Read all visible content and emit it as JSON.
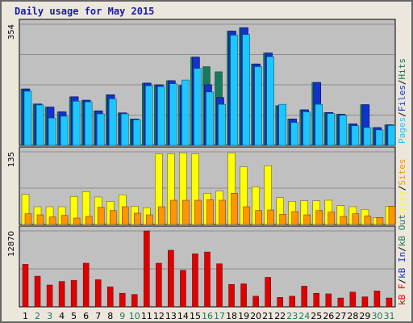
{
  "title": "Daily usage for May 2015",
  "colors": {
    "hits": "#177a5c",
    "files": "#1133cc",
    "pages": "#1ec6ff",
    "visits": "#ffff00",
    "sites": "#ff9500",
    "kb_in": "#1133cc",
    "kb_out": "#177a5c",
    "kb_f": "#e00000",
    "weekday": "#000000",
    "weekend": "#177a5c",
    "panel_bg": "#c0c0c0"
  },
  "chart_data": [
    {
      "type": "bar",
      "panel": "top",
      "ymax_label": "354",
      "ylim": [
        0,
        354
      ],
      "categories": [
        "1",
        "2",
        "3",
        "4",
        "5",
        "6",
        "7",
        "8",
        "9",
        "10",
        "11",
        "12",
        "13",
        "14",
        "15",
        "16",
        "17",
        "18",
        "19",
        "20",
        "21",
        "22",
        "23",
        "24",
        "25",
        "26",
        "27",
        "28",
        "29",
        "30",
        "31"
      ],
      "weekend_days": [
        "2",
        "3",
        "9",
        "10",
        "16",
        "17",
        "23",
        "24",
        "30",
        "31"
      ],
      "legend": [
        "Pages",
        "/",
        "Files",
        "/",
        "Hits"
      ],
      "series": [
        {
          "name": "Hits",
          "values": [
            165,
            121,
            112,
            98,
            142,
            132,
            101,
            148,
            95,
            77,
            182,
            177,
            189,
            175,
            258,
            230,
            215,
            334,
            344,
            238,
            270,
            116,
            77,
            104,
            184,
            96,
            91,
            63,
            119,
            52,
            60
          ]
        },
        {
          "name": "Files",
          "values": [
            165,
            121,
            112,
            98,
            142,
            132,
            101,
            148,
            95,
            77,
            182,
            177,
            189,
            175,
            258,
            177,
            140,
            334,
            344,
            238,
            270,
            116,
            77,
            104,
            184,
            96,
            91,
            63,
            119,
            52,
            60
          ]
        },
        {
          "name": "Pages",
          "values": [
            158,
            118,
            80,
            85,
            129,
            127,
            92,
            136,
            92,
            75,
            174,
            172,
            180,
            191,
            225,
            156,
            120,
            322,
            324,
            230,
            259,
            120,
            67,
            98,
            120,
            93,
            88,
            57,
            52,
            45,
            58
          ]
        }
      ]
    },
    {
      "type": "bar",
      "panel": "middle",
      "ymax_label": "135",
      "ylim": [
        0,
        135
      ],
      "categories": [
        "1",
        "2",
        "3",
        "4",
        "5",
        "6",
        "7",
        "8",
        "9",
        "10",
        "11",
        "12",
        "13",
        "14",
        "15",
        "16",
        "17",
        "18",
        "19",
        "20",
        "21",
        "22",
        "23",
        "24",
        "25",
        "26",
        "27",
        "28",
        "29",
        "30",
        "31"
      ],
      "legend": [
        "Visits",
        "/",
        "Sites"
      ],
      "series": [
        {
          "name": "Visits",
          "values": [
            56,
            33,
            33,
            33,
            52,
            61,
            51,
            43,
            55,
            34,
            31,
            131,
            131,
            133,
            131,
            58,
            62,
            133,
            107,
            70,
            109,
            50,
            43,
            44,
            44,
            45,
            35,
            33,
            28,
            13,
            34
          ]
        },
        {
          "name": "Sites",
          "values": [
            20,
            18,
            14,
            17,
            12,
            15,
            32,
            26,
            33,
            21,
            18,
            33,
            45,
            45,
            45,
            46,
            45,
            58,
            33,
            26,
            27,
            19,
            24,
            18,
            26,
            23,
            15,
            20,
            16,
            13,
            34
          ]
        }
      ]
    },
    {
      "type": "bar",
      "panel": "bottom",
      "ymax_label": "12870",
      "ylim": [
        0,
        12870
      ],
      "categories": [
        "1",
        "2",
        "3",
        "4",
        "5",
        "6",
        "7",
        "8",
        "9",
        "10",
        "11",
        "12",
        "13",
        "14",
        "15",
        "16",
        "17",
        "18",
        "19",
        "20",
        "21",
        "22",
        "23",
        "24",
        "25",
        "26",
        "27",
        "28",
        "29",
        "30",
        "31"
      ],
      "legend": [
        "kB F",
        "/",
        "kB In",
        "/",
        "kB Out"
      ],
      "series": [
        {
          "name": "kB F",
          "values": [
            7200,
            5200,
            3700,
            4300,
            4500,
            7400,
            4600,
            3400,
            2300,
            2100,
            12870,
            7400,
            9600,
            6200,
            9000,
            9300,
            7300,
            3800,
            3900,
            1800,
            5000,
            1600,
            1800,
            3500,
            2300,
            2200,
            1500,
            2500,
            1700,
            2700,
            1500
          ]
        }
      ]
    }
  ]
}
